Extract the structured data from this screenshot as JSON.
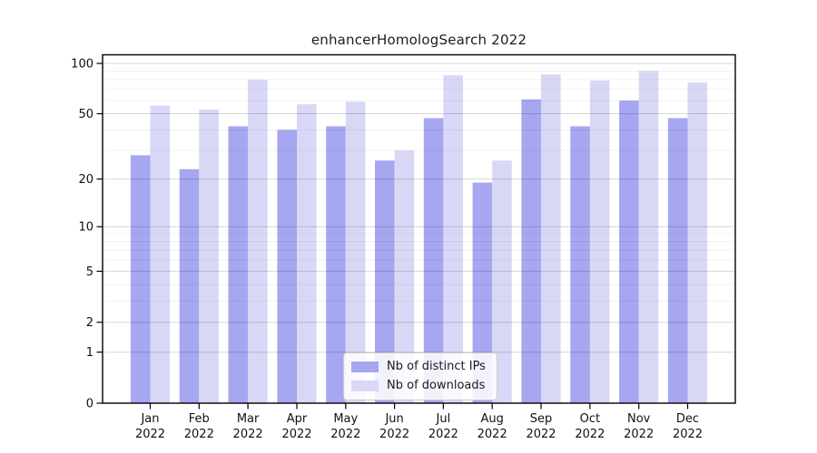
{
  "figure": {
    "background_color": "#ffffff",
    "title": "enhancerHomologSearch 2022"
  },
  "chart_data": {
    "type": "bar",
    "title": "enhancerHomologSearch 2022",
    "yscale": "log1p",
    "grid": true,
    "legend_position": "bottom-center",
    "categories": [
      "Jan 2022",
      "Feb 2022",
      "Mar 2022",
      "Apr 2022",
      "May 2022",
      "Jun 2022",
      "Jul 2022",
      "Aug 2022",
      "Sep 2022",
      "Oct 2022",
      "Nov 2022",
      "Dec 2022"
    ],
    "series": [
      {
        "name": "Nb of distinct IPs",
        "color": "#a6a6f1",
        "values": [
          28,
          23,
          42,
          40,
          42,
          26,
          47,
          19,
          61,
          42,
          60,
          47
        ]
      },
      {
        "name": "Nb of downloads",
        "color": "#d8d8f6",
        "values": [
          56,
          53,
          80,
          57,
          59,
          30,
          85,
          26,
          86,
          79,
          90,
          77
        ]
      }
    ],
    "y_major_ticks": [
      0,
      1,
      2,
      5,
      10,
      20,
      50,
      100
    ],
    "y_minor_gridlines": [
      3,
      4,
      6,
      7,
      8,
      9,
      30,
      40,
      60,
      70,
      80,
      90
    ],
    "ylim": [
      0,
      113
    ],
    "xlabel": "",
    "ylabel": ""
  },
  "legend": {
    "items": [
      {
        "label": "Nb of distinct IPs",
        "color": "#a6a6f1"
      },
      {
        "label": "Nb of downloads",
        "color": "#d8d8f6"
      }
    ]
  }
}
